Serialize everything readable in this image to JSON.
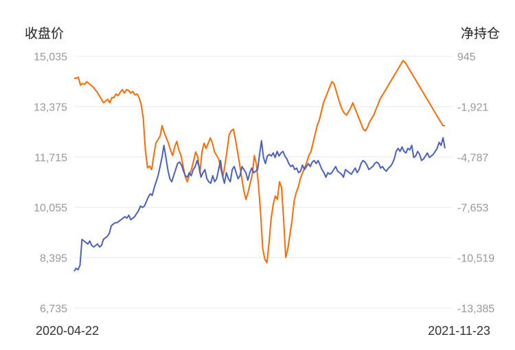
{
  "chart_data": {
    "type": "line",
    "left_axis_title": "收盘价",
    "right_axis_title": "净持仓",
    "left_ticks": [
      "15,035",
      "13,375",
      "11,715",
      "10,055",
      "8,395",
      "6,735"
    ],
    "right_ticks": [
      "945",
      "-1,921",
      "-4,787",
      "-7,653",
      "-10,519",
      "-13,385"
    ],
    "ylim_left": [
      6735,
      15035
    ],
    "ylim_right": [
      -13385,
      945
    ],
    "x_labels": [
      "2020-04-22",
      "2021-11-23"
    ],
    "grid": true,
    "colors": {
      "close": "#4a5fc1",
      "net": "#ff6a00",
      "grid": "#e6e9f0"
    },
    "series": [
      {
        "key": "close",
        "axis": "left",
        "values": [
          7950,
          8050,
          8000,
          8150,
          9000,
          8950,
          8900,
          8850,
          8950,
          8800,
          8750,
          8800,
          8850,
          8750,
          8800,
          9000,
          9050,
          9100,
          9200,
          9450,
          9500,
          9550,
          9550,
          9600,
          9650,
          9700,
          9750,
          9700,
          9800,
          9650,
          9700,
          9750,
          9850,
          9950,
          10100,
          10050,
          10100,
          10250,
          10400,
          10500,
          10450,
          10700,
          10900,
          11100,
          11400,
          11700,
          12100,
          11700,
          11300,
          11000,
          10900,
          11100,
          11300,
          11500,
          11550,
          11450,
          11250,
          11100,
          11050,
          11200,
          11100,
          11300,
          11400,
          11600,
          11400,
          11050,
          11200,
          11300,
          11000,
          10900,
          10850,
          11100,
          10900,
          11000,
          11300,
          11600,
          11100,
          10850,
          11200,
          11000,
          10900,
          11300,
          11400,
          11200,
          11000,
          11100,
          11400,
          11300,
          11200,
          10950,
          11200,
          11350,
          11200,
          11250,
          11300,
          11800,
          12250,
          11700,
          11500,
          11750,
          11800,
          11750,
          11850,
          11700,
          11900,
          11750,
          11850,
          11900,
          11750,
          11650,
          11500,
          11400,
          11450,
          11300,
          11350,
          11200,
          11250,
          11450,
          11300,
          11400,
          11500,
          11400,
          11550,
          11600,
          11500,
          11600,
          11450,
          11300,
          11200,
          11050,
          11200,
          11150,
          11200,
          11300,
          11400,
          11250,
          11200,
          11150,
          11050,
          11300,
          11250,
          11200,
          11150,
          11250,
          11350,
          11200,
          11300,
          11500,
          11600,
          11550,
          11450,
          11300,
          11350,
          11400,
          11500,
          11550,
          11500,
          11350,
          11400,
          11300,
          11250,
          11350,
          11400,
          11500,
          11650,
          11900,
          12000,
          11900,
          12050,
          11900,
          11850,
          12000,
          11950,
          12100,
          11700,
          11750,
          11900,
          11800,
          11600,
          11650,
          11750,
          11850,
          11700,
          11750,
          11800,
          11900,
          12000,
          12200,
          12100,
          12350,
          12000
        ]
      },
      {
        "key": "net",
        "axis": "right",
        "values": [
          -300,
          -300,
          -250,
          -700,
          -600,
          -650,
          -500,
          -600,
          -700,
          -800,
          -950,
          -1100,
          -1300,
          -1500,
          -1700,
          -1600,
          -1500,
          -1700,
          -1400,
          -1400,
          -1200,
          -1300,
          -1100,
          -950,
          -1150,
          -950,
          -1000,
          -1150,
          -1050,
          -1250,
          -1200,
          -1400,
          -1800,
          -2600,
          -4400,
          -5400,
          -5300,
          -5500,
          -4700,
          -4000,
          -3800,
          -3600,
          -3000,
          -3400,
          -3700,
          -4000,
          -4400,
          -4700,
          -4200,
          -3900,
          -4400,
          -4700,
          -5300,
          -5900,
          -6200,
          -5800,
          -5500,
          -5000,
          -4500,
          -4800,
          -5700,
          -4500,
          -4000,
          -4300,
          -4000,
          -3700,
          -4000,
          -4500,
          -4700,
          -4900,
          -5500,
          -5900,
          -5200,
          -4400,
          -3500,
          -3300,
          -3200,
          -3800,
          -4500,
          -5200,
          -6000,
          -6700,
          -7200,
          -6800,
          -6300,
          -5800,
          -4700,
          -5200,
          -6400,
          -8000,
          -10000,
          -10600,
          -10800,
          -9700,
          -8300,
          -7500,
          -7000,
          -7200,
          -6200,
          -6500,
          -8400,
          -10500,
          -10000,
          -9200,
          -8400,
          -7300,
          -6800,
          -6500,
          -6000,
          -5700,
          -5400,
          -5100,
          -4700,
          -4500,
          -4000,
          -3500,
          -3000,
          -2700,
          -2200,
          -1700,
          -1400,
          -1100,
          -800,
          -500,
          -600,
          -1000,
          -1400,
          -1800,
          -2100,
          -2300,
          -2400,
          -2200,
          -2000,
          -1700,
          -2000,
          -2300,
          -2600,
          -2900,
          -3200,
          -3300,
          -3100,
          -2800,
          -2600,
          -2400,
          -2100,
          -1800,
          -1500,
          -1300,
          -1100,
          -900,
          -700,
          -500,
          -300,
          -100,
          100,
          300,
          500,
          700,
          600,
          400,
          200,
          0,
          -200,
          -400,
          -600,
          -800,
          -1000,
          -1200,
          -1400,
          -1600,
          -1800,
          -2000,
          -2200,
          -2400,
          -2600,
          -2800,
          -3000,
          -3000
        ]
      }
    ]
  }
}
